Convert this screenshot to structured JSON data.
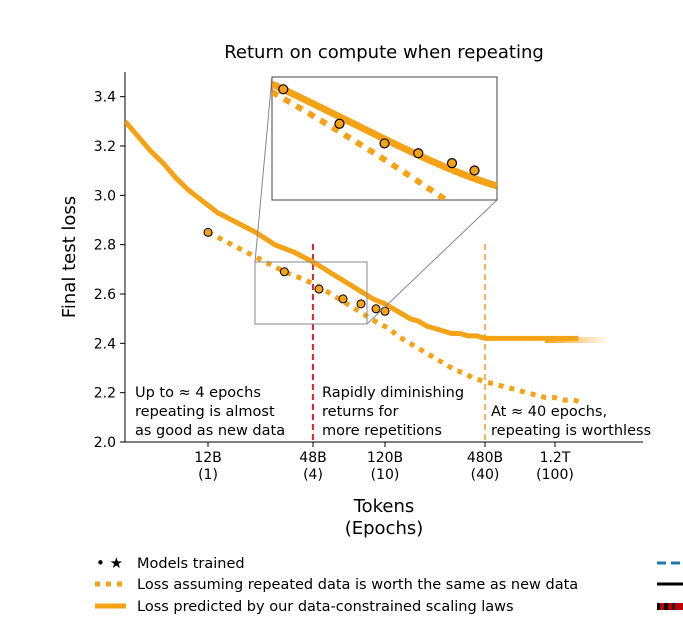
{
  "chart_data": {
    "type": "line",
    "title": "Return on compute when repeating",
    "ylabel": "Final test loss",
    "xlabel_line1": "Tokens",
    "xlabel_line2": "(Epochs)",
    "ylim": [
      2.0,
      3.5
    ],
    "y_ticks": [
      "2.0",
      "2.2",
      "2.4",
      "2.6",
      "2.8",
      "3.0",
      "3.2",
      "3.4"
    ],
    "x_ticks": [
      {
        "label": "12B",
        "sub": "(1)"
      },
      {
        "label": "48B",
        "sub": "(4)"
      },
      {
        "label": "120B",
        "sub": "(10)"
      },
      {
        "label": "480B",
        "sub": "(40)"
      },
      {
        "label": "1.2T",
        "sub": "(100)"
      }
    ],
    "series": [
      {
        "name": "Loss predicted by our data-constrained scaling laws",
        "style": "solid",
        "x": [
          0,
          4,
          8,
          12,
          16,
          20,
          24,
          28,
          32,
          36,
          40,
          44,
          48,
          52,
          56,
          60,
          64,
          68,
          72,
          76,
          80,
          84,
          88,
          92,
          96,
          100,
          104,
          108,
          112,
          116,
          120,
          128,
          136,
          144,
          152,
          160
        ],
        "y": [
          3.3,
          3.24,
          3.18,
          3.13,
          3.07,
          3.02,
          2.98,
          2.93,
          2.89,
          2.85,
          2.8,
          2.77,
          2.73,
          2.7,
          2.67,
          2.64,
          2.61,
          2.58,
          2.56,
          2.54,
          2.52,
          2.5,
          2.49,
          2.47,
          2.46,
          2.45,
          2.44,
          2.44,
          2.43,
          2.43,
          2.42,
          2.42,
          2.42,
          2.42,
          2.42,
          2.42
        ]
      },
      {
        "name": "Loss assuming repeated data is worth the same as new data",
        "style": "dotted",
        "x": [
          26,
          30,
          34,
          38,
          42,
          46,
          50,
          54,
          58,
          62,
          66,
          70,
          74,
          78,
          82,
          86,
          90,
          94,
          98,
          102,
          106,
          110,
          114,
          118,
          122,
          126,
          130,
          134,
          138,
          142,
          146,
          150,
          154,
          158,
          162
        ],
        "y": [
          2.85,
          2.81,
          2.77,
          2.73,
          2.69,
          2.66,
          2.63,
          2.6,
          2.57,
          2.54,
          2.51,
          2.48,
          2.46,
          2.43,
          2.41,
          2.39,
          2.37,
          2.35,
          2.33,
          2.31,
          2.29,
          2.28,
          2.26,
          2.25,
          2.24,
          2.23,
          2.22,
          2.21,
          2.2,
          2.19,
          2.18,
          2.18,
          2.17,
          2.17,
          2.16
        ]
      }
    ],
    "models_trained": {
      "x": [
        26,
        42,
        50,
        58,
        64,
        69,
        72
      ],
      "y": [
        2.85,
        2.69,
        2.62,
        2.58,
        2.56,
        2.54,
        2.53
      ]
    },
    "inset_points": {
      "x": [
        0.05,
        0.3,
        0.5,
        0.65,
        0.8,
        0.9
      ],
      "y": [
        3.4,
        3.26,
        3.18,
        3.14,
        3.1,
        3.07
      ]
    },
    "vlines": [
      {
        "x": 48,
        "color": "#e0282e",
        "label": "48B"
      },
      {
        "x": 120,
        "color": "#f7b267",
        "label": "480B"
      }
    ],
    "annotations": [
      {
        "lines": [
          "Up to ≈ 4 epochs",
          "repeating is almost",
          "as good as new data"
        ],
        "color": "#d62728"
      },
      {
        "lines": [
          "Rapidly diminishing",
          "returns for",
          "more repetitions"
        ],
        "color": "#e3761f"
      },
      {
        "lines": [
          "At ≈ 40 epochs,",
          "repeating is worthless"
        ],
        "color": "#f7b267"
      }
    ],
    "legend": [
      {
        "marker": "• ★",
        "label": "Models trained"
      },
      {
        "marker": "dotted",
        "label": "Loss assuming repeated data is worth the same as new data"
      },
      {
        "marker": "solid",
        "label": "Loss predicted by our data-constrained scaling laws"
      }
    ],
    "colors": {
      "main": "#f5a316",
      "marker_fill": "#f5a316",
      "marker_edge": "#000000",
      "red": "#e0282e",
      "light_orange": "#f7b267"
    }
  }
}
